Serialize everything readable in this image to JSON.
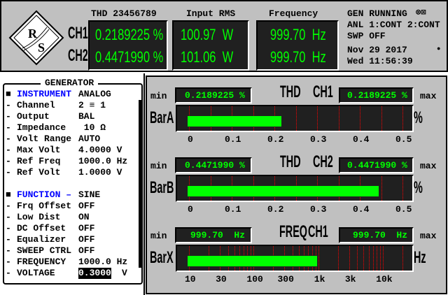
{
  "header": {
    "logo_text": "R&S",
    "ch1_label": "CH1",
    "ch2_label": "CH2",
    "columns": [
      {
        "title": "THD 23456789",
        "ch1": "0.2189225 %",
        "ch2": "0.4471990 %"
      },
      {
        "title": "Input RMS",
        "ch1": "100.97  W",
        "ch2": "101.06  W"
      },
      {
        "title": "Frequency",
        "ch1": "999.70  Hz",
        "ch2": "999.70  Hz"
      }
    ],
    "status": [
      "GEN RUNNING",
      "ANL 1:CONT 2:CONT",
      "SWP OFF"
    ],
    "date": "Nov 29 2017",
    "time": "Wed 11:56:39"
  },
  "generator": {
    "title": "GENERATOR",
    "rows": [
      {
        "bullet": "■",
        "label": "INSTRUMENT",
        "value": "ANALOG",
        "heading": true
      },
      {
        "bullet": "-",
        "label": "Channel",
        "value": "2 ≡ 1"
      },
      {
        "bullet": "-",
        "label": "Output",
        "value": "BAL"
      },
      {
        "bullet": "-",
        "label": "Impedance",
        "value": " 10 Ω"
      },
      {
        "bullet": "-",
        "label": "Volt Range",
        "value": "AUTO"
      },
      {
        "bullet": "-",
        "label": "Max Volt",
        "value": "4.0000 V"
      },
      {
        "bullet": "-",
        "label": "Ref Freq",
        "value": "1000.0 Hz"
      },
      {
        "bullet": "-",
        "label": "Ref Volt",
        "value": "1.0000 V"
      },
      {
        "bullet": "",
        "label": "",
        "value": ""
      },
      {
        "bullet": "■",
        "label": "FUNCTION –",
        "value": "SINE",
        "heading": true
      },
      {
        "bullet": "-",
        "label": "Frq Offset",
        "value": "OFF"
      },
      {
        "bullet": "-",
        "label": "Low Dist",
        "value": "ON"
      },
      {
        "bullet": "-",
        "label": "DC Offset",
        "value": "OFF"
      },
      {
        "bullet": "-",
        "label": "Equalizer",
        "value": "OFF"
      },
      {
        "bullet": "-",
        "label": "SWEEP CTRL",
        "value": "OFF"
      },
      {
        "bullet": "-",
        "label": "FREQUENCY",
        "value": "1000.0 Hz"
      },
      {
        "bullet": "-",
        "label": "VOLTAGE",
        "value": "0.3000",
        "unit": "V",
        "selected": true
      }
    ]
  },
  "bars": [
    {
      "name": "BarA",
      "title1": "THD",
      "title2": "CH1",
      "min_label": "min",
      "max_label": "max",
      "min": "0.2189225 %",
      "max": "0.2189225 %",
      "unit": "%",
      "scale": "linear",
      "range": [
        0,
        0.5
      ],
      "value": 0.2189225,
      "ticks": [
        "0",
        "0.1",
        "0.2",
        "0.3",
        "0.4",
        "0.5"
      ]
    },
    {
      "name": "BarB",
      "title1": "THD",
      "title2": "CH2",
      "min_label": "min",
      "max_label": "max",
      "min": "0.4471990 %",
      "max": "0.4471990 %",
      "unit": "%",
      "scale": "linear",
      "range": [
        0,
        0.5
      ],
      "value": 0.447199,
      "ticks": [
        "0",
        "0.1",
        "0.2",
        "0.3",
        "0.4",
        "0.5"
      ]
    },
    {
      "name": "BarX",
      "title1": "FREQ",
      "title2": "CH1",
      "min_label": "min",
      "max_label": "max",
      "min": "999.70  Hz",
      "max": "999.70  Hz",
      "unit": "Hz",
      "scale": "log",
      "range": [
        10,
        20000
      ],
      "value": 999.7,
      "ticks": [
        "10",
        "30",
        "100",
        "300",
        "1k",
        "3k",
        "10k"
      ]
    }
  ],
  "colors": {
    "lcd_text": "#00ff00",
    "lcd_bg": "#202020",
    "panel": "#c0c0c0",
    "heading": "#0000ff",
    "grid": "#ff0000"
  }
}
